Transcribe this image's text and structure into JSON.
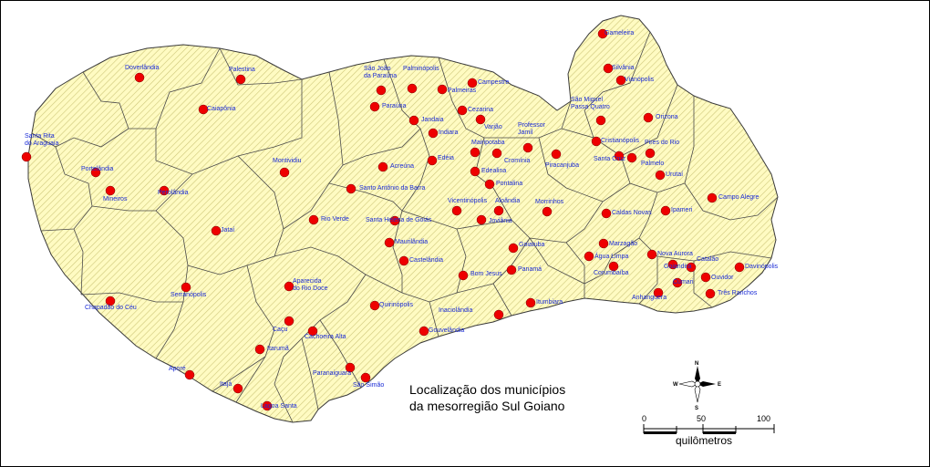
{
  "map": {
    "title_line1": "Localização dos municípios",
    "title_line2": "da mesorregião Sul Goiano",
    "fill_color": "#fffbc2",
    "hatch_color": "#cdc77a",
    "border_color": "#3a3a3a",
    "marker_color": "#ee0000",
    "label_color": "#1a2bd6"
  },
  "scale_bar": {
    "ticks": [
      "0",
      "50",
      "100"
    ],
    "unit": "quilômetros"
  },
  "compass": {
    "n": "N",
    "s": "S",
    "e": "E",
    "w": "W"
  },
  "municipalities": [
    "Gameleira",
    "Silvânia",
    "Vianópolis",
    "Doverlândia",
    "Palestina",
    "São João da Paraúna",
    "Palminópolis",
    "Campestre",
    "Paraúna",
    "Palmeiras",
    "Caiapônia",
    "São Miguel Passa Quatro",
    "Orizona",
    "Cezarina",
    "Jandaia",
    "Varjão",
    "Indiara",
    "Professor Jamil",
    "Santa Rita do Araguaia",
    "Mairipotaba",
    "Cristianópolis",
    "Pires do Rio",
    "Cromínia",
    "Portelândia",
    "Montividiu",
    "Acreúna",
    "Edéia",
    "Piracanjuba",
    "Santa Cruz",
    "Palmelo",
    "Edealina",
    "Urutaí",
    "Pontalina",
    "Mineiros",
    "Perolândia",
    "Santo Antônio da Barra",
    "Vicentinópolis",
    "Aloândia",
    "Morrinhos",
    "Campo Alegre",
    "Caldas Novas",
    "Ipameri",
    "Rio Verde",
    "Santa Helena de Goiás",
    "Joviânia",
    "Jataí",
    "Maurilândia",
    "Goiatuba",
    "Marzagão",
    "Nova Aurora",
    "Castelândia",
    "Água Limpa",
    "Catalão",
    "Goiandira",
    "Davinópolis",
    "Panamá",
    "Corumbaíba",
    "Bom Jesus",
    "Ouvidor",
    "Aparecida do Rio Doce",
    "Cumari",
    "Serranópolis",
    "Três Ranchos",
    "Quirinópolis",
    "Itumbiara",
    "Anhanguera",
    "Chapadão do Céu",
    "Inaciolândia",
    "Caçu",
    "Gouvelândia",
    "Cachoeira Alta",
    "Itarumã",
    "Paranaiguara",
    "Aporé",
    "São Simão",
    "Itajá",
    "Lagoa Santa"
  ]
}
